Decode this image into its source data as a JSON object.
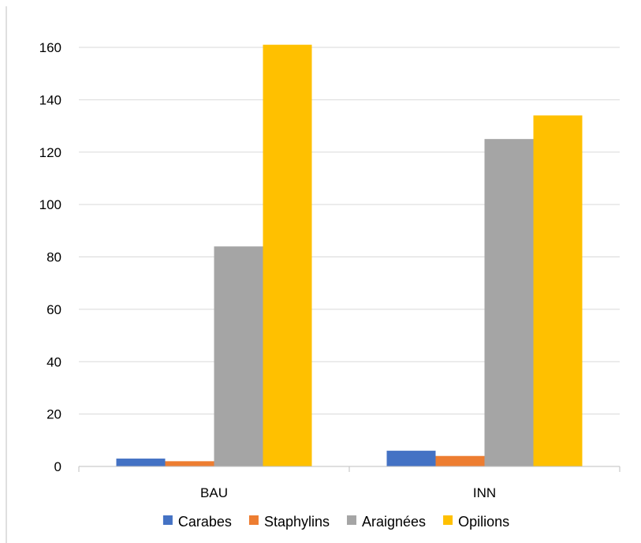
{
  "chart_data": {
    "type": "bar",
    "categories": [
      "BAU",
      "INN"
    ],
    "series": [
      {
        "name": "Carabes",
        "values": [
          3,
          6
        ],
        "color": "#4472C4"
      },
      {
        "name": "Staphylins",
        "values": [
          2,
          4
        ],
        "color": "#ED7D31"
      },
      {
        "name": "Araignées",
        "values": [
          84,
          125
        ],
        "color": "#A5A5A5"
      },
      {
        "name": "Opilions",
        "values": [
          161,
          134
        ],
        "color": "#FFC000"
      }
    ],
    "ylim": [
      0,
      160
    ],
    "yticks": [
      0,
      20,
      40,
      60,
      80,
      100,
      120,
      140,
      160
    ],
    "grid": true,
    "legend_position": "bottom"
  }
}
